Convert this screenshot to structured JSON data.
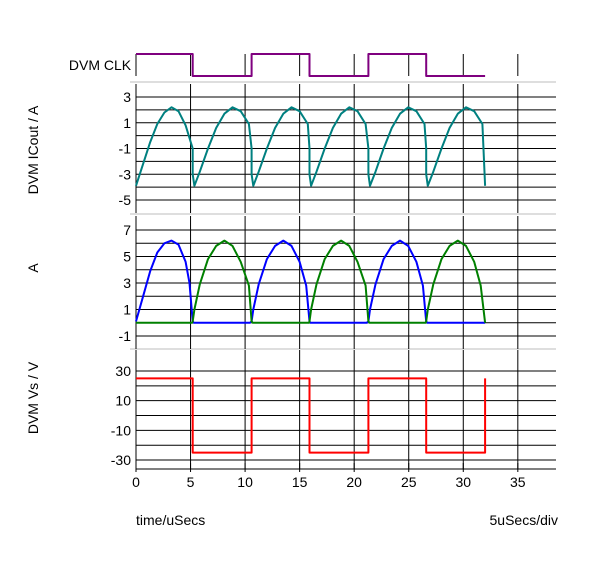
{
  "footer": {
    "xlabel": "time/uSecs",
    "scale": "5uSecs/div"
  },
  "chart_data": [
    {
      "type": "line",
      "subtype": "digital",
      "ylabel": "DVM CLK",
      "series": [
        {
          "name": "DVM CLK",
          "color": "#7F007F",
          "x": [
            0,
            5.2,
            5.2,
            10.6,
            10.6,
            15.9,
            15.9,
            21.3,
            21.3,
            26.6,
            26.6,
            32
          ],
          "y": [
            1,
            1,
            0,
            0,
            1,
            1,
            0,
            0,
            1,
            1,
            0,
            0
          ]
        }
      ]
    },
    {
      "type": "line",
      "ylabel": "DVM ICout / A",
      "ylim": [
        -5,
        3
      ],
      "yticks": [
        3,
        1,
        -1,
        -3,
        -5
      ],
      "series": [
        {
          "name": "DVM ICout",
          "color": "#008080",
          "x": [
            0,
            0.65,
            1.3,
            1.95,
            2.6,
            3.25,
            3.9,
            4.55,
            5.2,
            5.2,
            5.35,
            5.85,
            6.6,
            7.35,
            8.1,
            8.85,
            9.6,
            10.35,
            10.6,
            10.6,
            10.75,
            11.25,
            12.0,
            12.75,
            13.5,
            14.25,
            15.0,
            15.75,
            15.9,
            15.9,
            16.05,
            16.55,
            17.3,
            18.05,
            18.8,
            19.55,
            20.3,
            21.05,
            21.3,
            21.3,
            21.45,
            21.95,
            22.7,
            23.45,
            24.2,
            24.95,
            25.7,
            26.45,
            26.6,
            26.6,
            26.75,
            27.25,
            28.0,
            28.75,
            29.5,
            30.25,
            31.0,
            31.75,
            32.0
          ],
          "y": [
            -3.9,
            -2.2,
            -0.5,
            0.9,
            1.8,
            2.2,
            1.9,
            0.8,
            -1.0,
            -3.0,
            -3.9,
            -2.8,
            -1.0,
            0.6,
            1.7,
            2.2,
            1.9,
            0.9,
            -1.0,
            -3.0,
            -3.9,
            -2.8,
            -1.0,
            0.6,
            1.7,
            2.2,
            1.9,
            0.9,
            -1.0,
            -3.0,
            -3.9,
            -2.8,
            -1.0,
            0.6,
            1.7,
            2.2,
            1.9,
            0.9,
            -1.0,
            -3.0,
            -3.9,
            -2.8,
            -1.0,
            0.6,
            1.7,
            2.2,
            1.9,
            0.9,
            -1.0,
            -3.0,
            -3.9,
            -2.8,
            -1.0,
            0.6,
            1.7,
            2.2,
            1.9,
            0.9,
            -3.9
          ]
        }
      ]
    },
    {
      "type": "line",
      "ylabel": "A",
      "ylim": [
        -1,
        7
      ],
      "yticks": [
        7,
        5,
        3,
        1,
        -1
      ],
      "series": [
        {
          "name": "blue",
          "color": "#0000FF",
          "x": [
            0,
            0.65,
            1.3,
            1.95,
            2.6,
            3.25,
            3.9,
            4.55,
            4.9,
            5.2,
            5.3,
            10.45,
            10.6,
            10.75,
            11.25,
            12.0,
            12.75,
            13.5,
            14.25,
            15.0,
            15.6,
            15.9,
            16.0,
            21.15,
            21.3,
            21.45,
            21.95,
            22.7,
            23.45,
            24.2,
            24.95,
            25.7,
            26.3,
            26.6,
            26.7,
            32.0
          ],
          "y": [
            0.1,
            2.0,
            3.9,
            5.3,
            6.0,
            6.2,
            5.9,
            4.6,
            3.0,
            0.1,
            0.0,
            0.0,
            0.1,
            1.0,
            2.9,
            4.8,
            5.8,
            6.2,
            5.8,
            4.6,
            2.8,
            0.1,
            0.0,
            0.0,
            0.1,
            1.0,
            2.9,
            4.8,
            5.8,
            6.2,
            5.8,
            4.6,
            2.8,
            0.1,
            0.0,
            0.0
          ]
        },
        {
          "name": "green",
          "color": "#008000",
          "x": [
            0,
            5.15,
            5.2,
            5.35,
            5.85,
            6.6,
            7.35,
            8.1,
            8.85,
            9.6,
            10.35,
            10.6,
            10.7,
            15.85,
            15.9,
            16.05,
            16.55,
            17.3,
            18.05,
            18.8,
            19.55,
            20.3,
            21.05,
            21.3,
            21.4,
            26.55,
            26.6,
            26.75,
            27.25,
            28.0,
            28.75,
            29.5,
            30.25,
            31.0,
            31.6,
            32.0
          ],
          "y": [
            0.0,
            0.0,
            0.1,
            1.0,
            2.9,
            4.8,
            5.8,
            6.2,
            5.8,
            4.6,
            2.8,
            0.1,
            0.0,
            0.0,
            0.1,
            1.0,
            2.9,
            4.8,
            5.8,
            6.2,
            5.8,
            4.6,
            2.8,
            0.1,
            0.0,
            0.0,
            0.1,
            1.0,
            2.9,
            4.8,
            5.8,
            6.2,
            5.8,
            4.6,
            2.8,
            0.0
          ]
        }
      ]
    },
    {
      "type": "line",
      "ylabel": "DVM Vs / V",
      "ylim": [
        -32,
        32
      ],
      "yticks": [
        30,
        10,
        -10,
        -30
      ],
      "xlim": [
        0,
        38.5
      ],
      "xticks": [
        0,
        5,
        10,
        15,
        20,
        25,
        30,
        35
      ],
      "series": [
        {
          "name": "DVM Vs",
          "color": "#FF0000",
          "x": [
            0,
            5.2,
            5.2,
            10.6,
            10.6,
            15.9,
            15.9,
            21.3,
            21.3,
            26.6,
            26.6,
            32.0,
            32.0
          ],
          "y": [
            25,
            25,
            -25,
            -25,
            25,
            25,
            -25,
            -25,
            25,
            25,
            -25,
            -25,
            25
          ]
        }
      ]
    }
  ]
}
